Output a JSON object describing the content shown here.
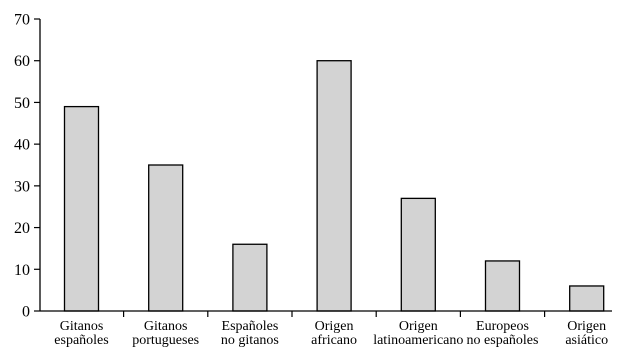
{
  "chart_data": {
    "type": "bar",
    "title": "",
    "xlabel": "",
    "ylabel": "",
    "categories": [
      [
        "Gitanos",
        "españoles"
      ],
      [
        "Gitanos",
        "portugueses"
      ],
      [
        "Españoles",
        "no gitanos"
      ],
      [
        "Origen",
        "africano"
      ],
      [
        "Origen",
        "latinoamericano"
      ],
      [
        "Europeos",
        "no españoles"
      ],
      [
        "Origen",
        "asiático"
      ]
    ],
    "values": [
      49,
      35,
      16,
      60,
      27,
      12,
      6
    ],
    "ylim": [
      0,
      70
    ],
    "yticks": [
      0,
      10,
      20,
      30,
      40,
      50,
      60,
      70
    ],
    "grid": false,
    "legend": "none",
    "colors": {
      "bar_fill": "#d3d3d3",
      "bar_stroke": "#000000",
      "axis": "#000000"
    }
  }
}
